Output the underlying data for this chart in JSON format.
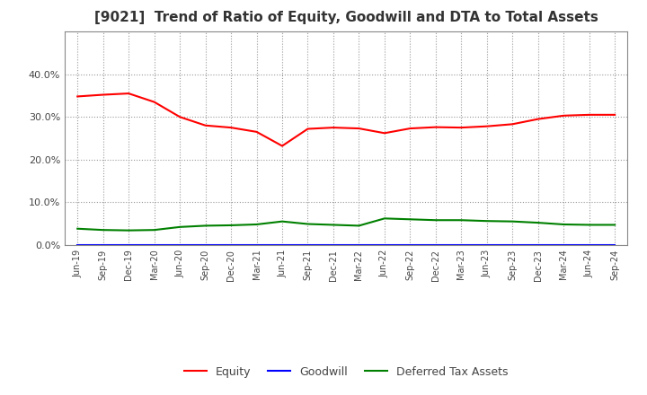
{
  "title": "[9021]  Trend of Ratio of Equity, Goodwill and DTA to Total Assets",
  "x_labels": [
    "Jun-19",
    "Sep-19",
    "Dec-19",
    "Mar-20",
    "Jun-20",
    "Sep-20",
    "Dec-20",
    "Mar-21",
    "Jun-21",
    "Sep-21",
    "Dec-21",
    "Mar-22",
    "Jun-22",
    "Sep-22",
    "Dec-22",
    "Mar-23",
    "Jun-23",
    "Sep-23",
    "Dec-23",
    "Mar-24",
    "Jun-24",
    "Sep-24"
  ],
  "equity": [
    34.8,
    35.2,
    35.5,
    33.5,
    30.0,
    28.0,
    27.5,
    26.5,
    23.2,
    27.2,
    27.5,
    27.3,
    26.2,
    27.3,
    27.6,
    27.5,
    27.8,
    28.3,
    29.5,
    30.3,
    30.5,
    30.5
  ],
  "goodwill": [
    0.0,
    0.0,
    0.0,
    0.0,
    0.0,
    0.0,
    0.0,
    0.0,
    0.0,
    0.0,
    0.0,
    0.0,
    0.0,
    0.0,
    0.0,
    0.0,
    0.0,
    0.0,
    0.0,
    0.0,
    0.0,
    0.0
  ],
  "dta": [
    3.8,
    3.5,
    3.4,
    3.5,
    4.2,
    4.5,
    4.6,
    4.8,
    5.5,
    4.9,
    4.7,
    4.5,
    6.2,
    6.0,
    5.8,
    5.8,
    5.6,
    5.5,
    5.2,
    4.8,
    4.7,
    4.7
  ],
  "equity_color": "#ff0000",
  "goodwill_color": "#0000ff",
  "dta_color": "#008000",
  "ylim": [
    0,
    50
  ],
  "yticks": [
    0.0,
    10.0,
    20.0,
    30.0,
    40.0
  ],
  "background_color": "#ffffff",
  "plot_bg_color": "#ffffff",
  "grid_color": "#999999",
  "title_fontsize": 11,
  "title_color": "#333333",
  "tick_label_color": "#444444",
  "legend_labels": [
    "Equity",
    "Goodwill",
    "Deferred Tax Assets"
  ],
  "line_width": 1.5
}
